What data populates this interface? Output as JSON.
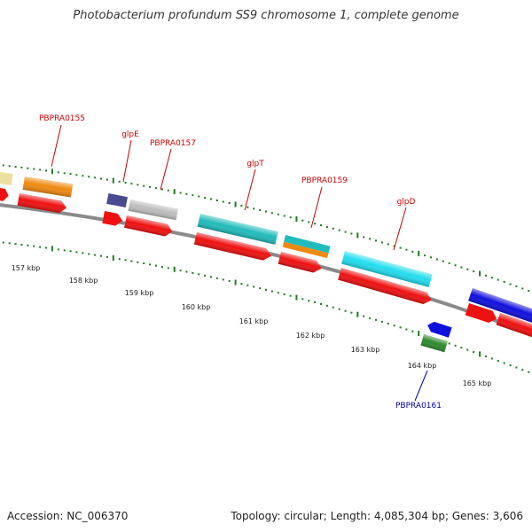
{
  "title": "Photobacterium profundum SS9 chromosome 1, complete genome",
  "footer": {
    "accession": "Accession: NC_006370",
    "summary": "Topology: circular; Length: 4,085,304 bp; Genes: 3,606"
  },
  "ruler": {
    "ticks": [
      "157 kbp",
      "158 kbp",
      "159 kbp",
      "160 kbp",
      "161 kbp",
      "162 kbp",
      "163 kbp",
      "164 kbp",
      "165 kbp"
    ]
  },
  "gene_labels": {
    "PBPRA0155": "PBPRA0155",
    "glpE": "glpE",
    "PBPRA0157": "PBPRA0157",
    "glpT": "glpT",
    "PBPRA0159": "PBPRA0159",
    "glpD": "glpD",
    "PBPRA0161": "PBPRA0161"
  },
  "colors": {
    "label_red": "#cc0000",
    "label_blue": "#0000aa",
    "tick_green": "#1e7a1e",
    "backbone": "#8a8a8a",
    "orange": "#ee8a10",
    "red": "#ee1111",
    "cyan_teal": "#22bbbb",
    "cyan_bright": "#22ddee",
    "blue": "#1010dd",
    "navy_purple": "#4a4a90",
    "silver": "#bdbdbd",
    "khaki": "#ebe0a0",
    "green": "#2e8b2e"
  }
}
